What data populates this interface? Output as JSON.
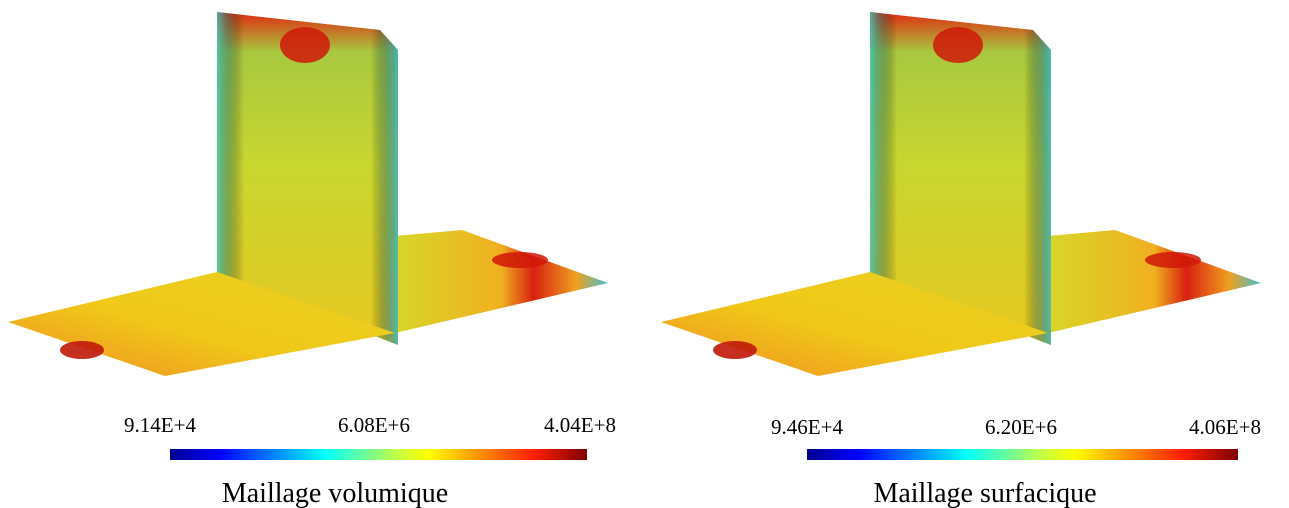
{
  "panels": [
    {
      "caption": "Maillage volumique",
      "colorbar": {
        "labels": [
          "9.14E+4",
          "6.08E+6",
          "4.04E+8"
        ]
      }
    },
    {
      "caption": "Maillage surfacique",
      "colorbar": {
        "labels": [
          "9.46E+4",
          "6.20E+6",
          "4.06E+8"
        ]
      }
    }
  ]
}
